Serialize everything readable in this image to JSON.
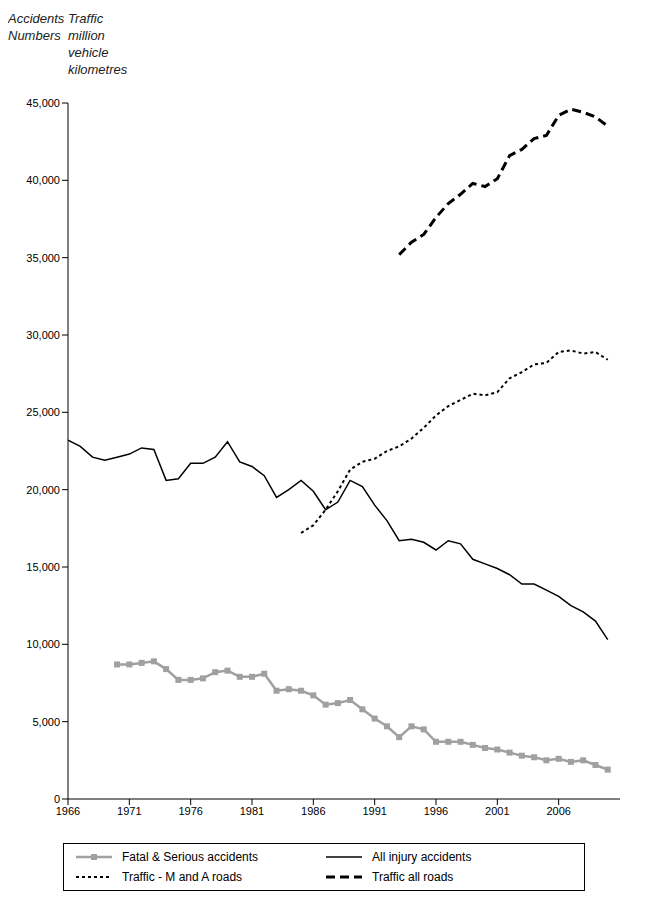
{
  "chart_data": {
    "type": "line",
    "y_labels": [
      "Accidents Numbers",
      "Traffic million vehicle kilometres"
    ],
    "x": [
      1966,
      1967,
      1968,
      1969,
      1970,
      1971,
      1972,
      1973,
      1974,
      1975,
      1976,
      1977,
      1978,
      1979,
      1980,
      1981,
      1982,
      1983,
      1984,
      1985,
      1986,
      1987,
      1988,
      1989,
      1990,
      1991,
      1992,
      1993,
      1994,
      1995,
      1996,
      1997,
      1998,
      1999,
      2000,
      2001,
      2002,
      2003,
      2004,
      2005,
      2006,
      2007,
      2008,
      2009,
      2010
    ],
    "xlim": [
      1966,
      2011
    ],
    "xticks": [
      1966,
      1971,
      1976,
      1981,
      1986,
      1991,
      1996,
      2001,
      2006
    ],
    "ylim": [
      0,
      45000
    ],
    "yticks": [
      0,
      {
        "value": 5000,
        "label": "5,000"
      },
      {
        "value": 10000,
        "label": "10,000"
      },
      {
        "value": 15000,
        "label": "15,000"
      },
      {
        "value": 20000,
        "label": "20,000"
      },
      {
        "value": 25000,
        "label": "25,000"
      },
      {
        "value": 30000,
        "label": "30,000"
      },
      {
        "value": 35000,
        "label": "35,000"
      },
      {
        "value": 40000,
        "label": "40,000"
      },
      {
        "value": 45000,
        "label": "45,000"
      }
    ],
    "grid": false,
    "legend": "bottom",
    "series": [
      {
        "name": "Fatal & Serious accidents",
        "color": "#a0a0a0",
        "marker": "square",
        "line_style": "solid",
        "values": [
          null,
          null,
          null,
          null,
          8700,
          8700,
          8800,
          8900,
          8400,
          7700,
          7700,
          7800,
          8200,
          8300,
          7900,
          7900,
          8100,
          7000,
          7100,
          7000,
          6700,
          6100,
          6200,
          6400,
          5800,
          5200,
          4700,
          4000,
          4700,
          4500,
          3700,
          3700,
          3700,
          3500,
          3300,
          3200,
          3000,
          2800,
          2700,
          2500,
          2600,
          2400,
          2500,
          2200,
          1900
        ]
      },
      {
        "name": "All injury accidents",
        "color": "#000000",
        "marker": "none",
        "line_style": "solid",
        "values": [
          23200,
          22800,
          22100,
          21900,
          22100,
          22300,
          22700,
          22600,
          20600,
          20700,
          21700,
          21700,
          22100,
          23100,
          21800,
          21500,
          20900,
          19500,
          20000,
          20600,
          19900,
          18700,
          19200,
          20600,
          20200,
          19000,
          18000,
          16700,
          16800,
          16600,
          16100,
          16700,
          16500,
          15500,
          15200,
          14900,
          14500,
          13900,
          13900,
          13500,
          13100,
          12500,
          12100,
          11500,
          10300
        ]
      },
      {
        "name": "Traffic - M and A roads",
        "color": "#000000",
        "marker": "none",
        "line_style": "dotted",
        "values": [
          null,
          null,
          null,
          null,
          null,
          null,
          null,
          null,
          null,
          null,
          null,
          null,
          null,
          null,
          null,
          null,
          null,
          null,
          null,
          17200,
          17700,
          18700,
          19900,
          21300,
          21800,
          22000,
          22500,
          22800,
          23300,
          24000,
          24800,
          25400,
          25800,
          26200,
          26100,
          26300,
          27200,
          27600,
          28100,
          28200,
          28900,
          29000,
          28800,
          28900,
          28400
        ]
      },
      {
        "name": "Traffic all roads",
        "color": "#000000",
        "marker": "none",
        "line_style": "dashed",
        "values": [
          null,
          null,
          null,
          null,
          null,
          null,
          null,
          null,
          null,
          null,
          null,
          null,
          null,
          null,
          null,
          null,
          null,
          null,
          null,
          null,
          null,
          null,
          null,
          null,
          null,
          null,
          null,
          35200,
          36000,
          36500,
          37600,
          38500,
          39100,
          39800,
          39600,
          40100,
          41600,
          42000,
          42700,
          42900,
          44200,
          44600,
          44400,
          44100,
          43500
        ]
      }
    ]
  }
}
